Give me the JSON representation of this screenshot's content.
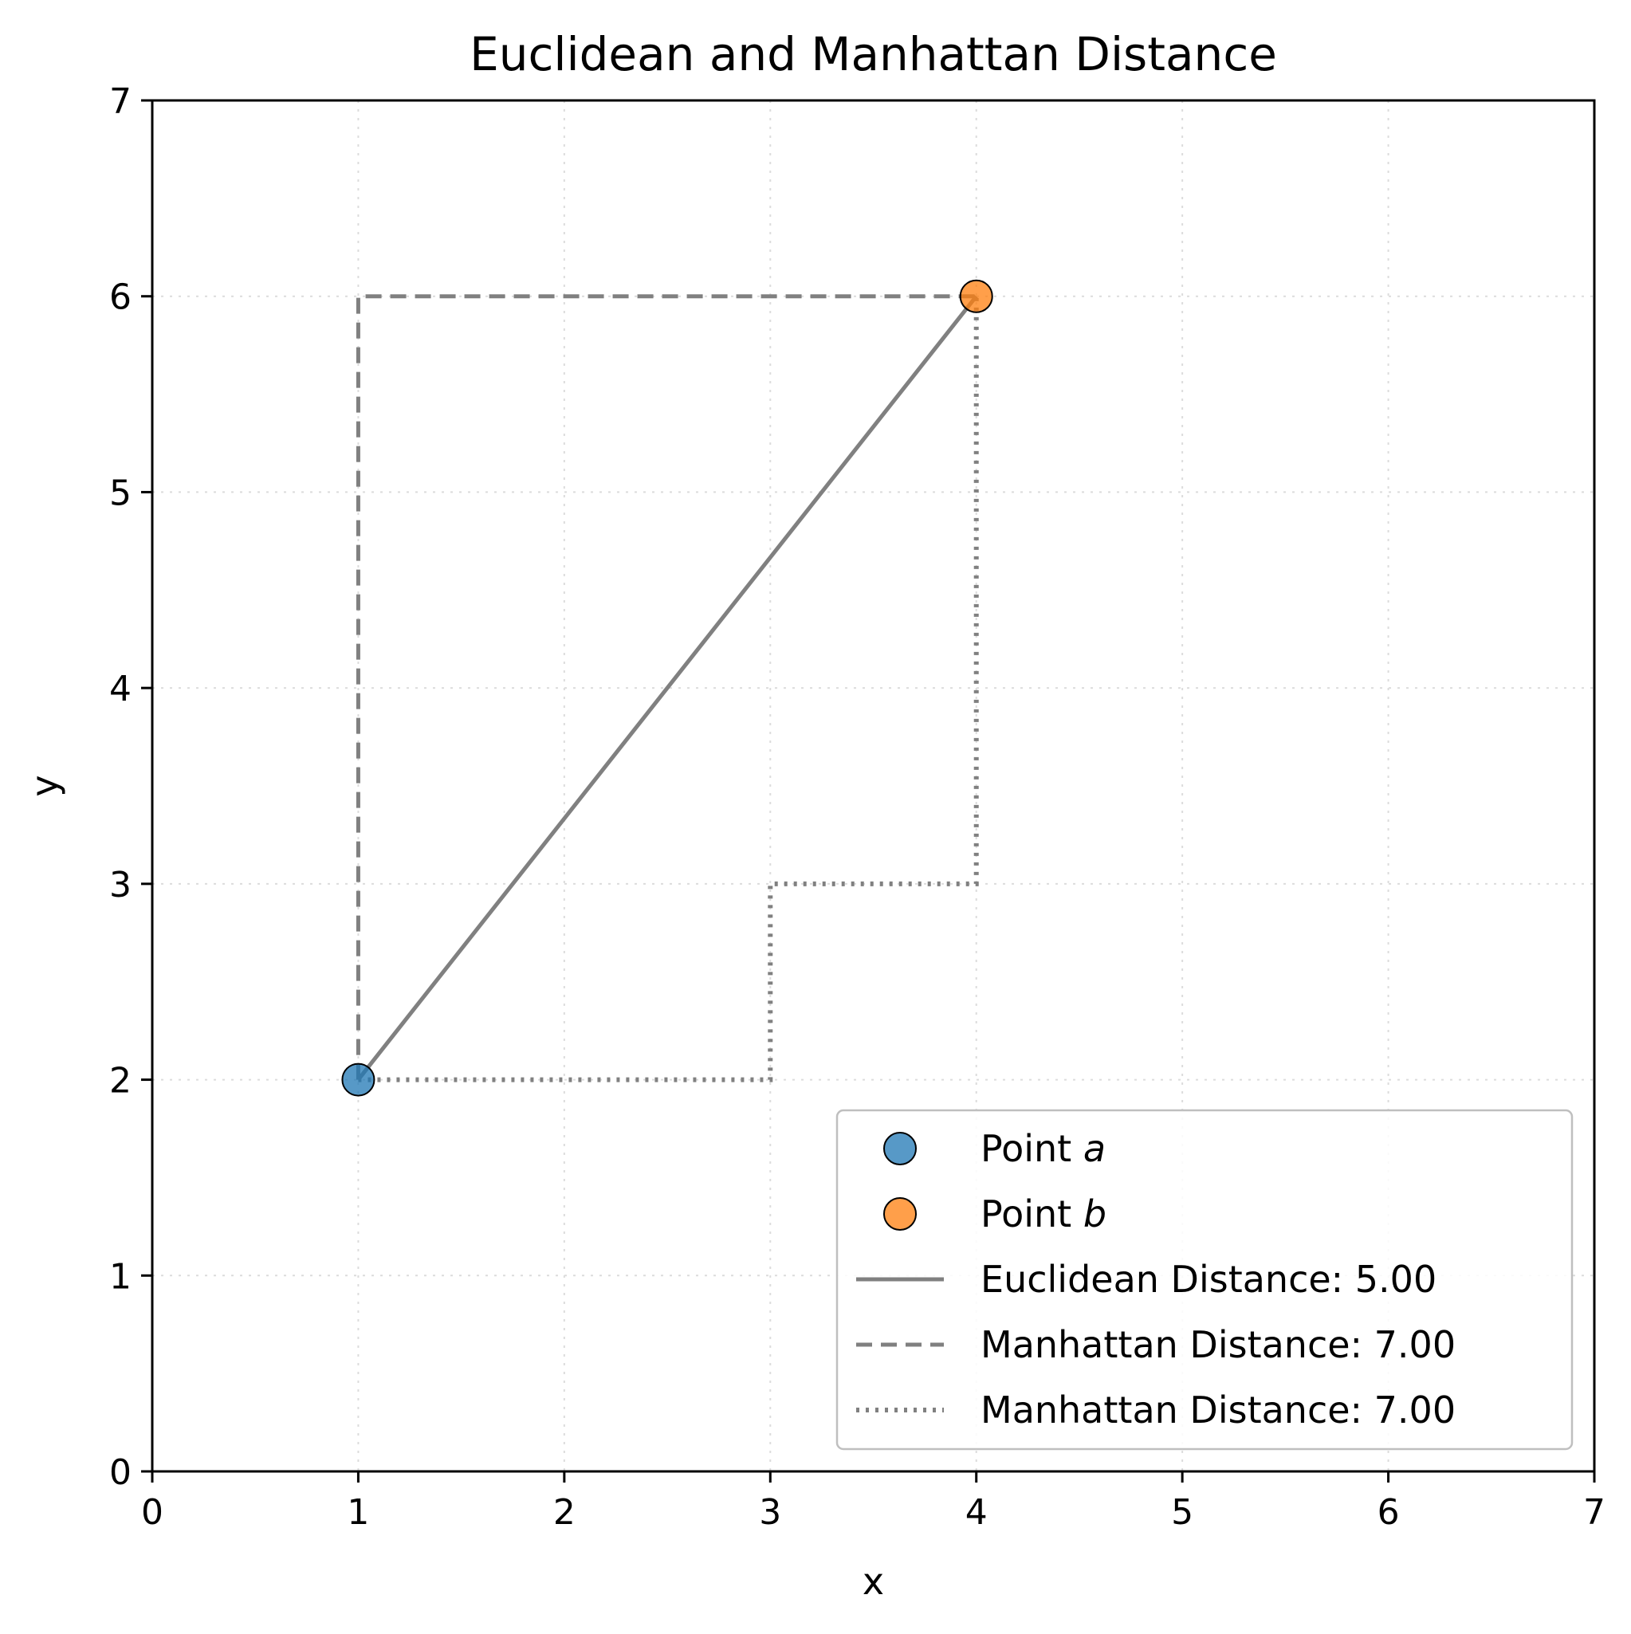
{
  "chart_data": {
    "type": "line",
    "title": "Euclidean and Manhattan Distance",
    "xlabel": "x",
    "ylabel": "y",
    "xlim": [
      0,
      7
    ],
    "ylim": [
      0,
      7
    ],
    "xticks": [
      "0",
      "1",
      "2",
      "3",
      "4",
      "5",
      "6",
      "7"
    ],
    "yticks": [
      "0",
      "1",
      "2",
      "3",
      "4",
      "5",
      "6",
      "7"
    ],
    "grid": true,
    "grid_style": "dotted",
    "legend_placement": "lower-right",
    "points": [
      {
        "name": "a",
        "legend_prefix": "Point ",
        "legend_var": "a",
        "x": 1,
        "y": 2,
        "color": "#1f77b4"
      },
      {
        "name": "b",
        "legend_prefix": "Point ",
        "legend_var": "b",
        "x": 4,
        "y": 6,
        "color": "#ff7f0e"
      }
    ],
    "series": [
      {
        "name": "Euclidean Distance: 5.00",
        "style": "solid",
        "color": "#808080",
        "x": [
          1,
          4
        ],
        "y": [
          2,
          6
        ]
      },
      {
        "name": "Manhattan Distance: 7.00",
        "style": "dashed",
        "color": "#808080",
        "x": [
          1,
          1,
          4
        ],
        "y": [
          2,
          6,
          6
        ]
      },
      {
        "name": "Manhattan Distance: 7.00",
        "style": "dotted",
        "color": "#808080",
        "x": [
          1,
          3,
          3,
          4,
          4
        ],
        "y": [
          2,
          2,
          3,
          3,
          6
        ]
      }
    ]
  }
}
